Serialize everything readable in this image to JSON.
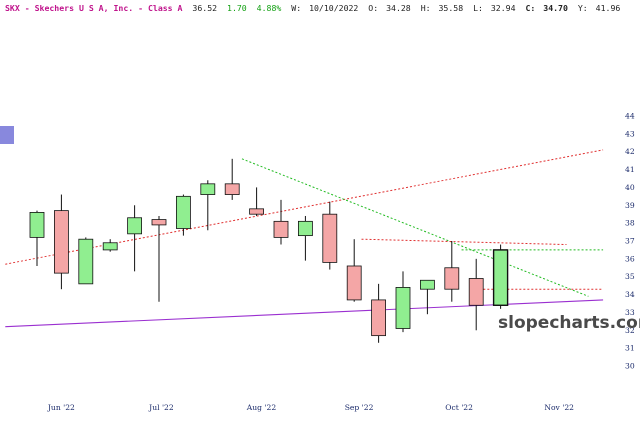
{
  "header": {
    "ticker": "SKX",
    "separator": " - ",
    "name": "Skechers U S A, Inc. - Class A",
    "last": "36.52",
    "change": "1.70",
    "change_pct": "4.88%",
    "week_label": "W:",
    "week_date": "10/10/2022",
    "open_label": "O:",
    "open": "34.28",
    "high_label": "H:",
    "high": "35.58",
    "low_label": "L:",
    "low": "32.94",
    "close_label": "C:",
    "close": "34.70",
    "yearhigh_label": "Y:",
    "yearhigh": "41.96"
  },
  "watermark": "slopecharts.com",
  "colors": {
    "header_name": "#c0148c",
    "header_change": "#12a012",
    "header_text": "#222222",
    "up_fill": "#90ee90",
    "down_fill": "#f4a6a6",
    "candle_stroke": "#111111",
    "trend_green": "#22bb22",
    "trend_red": "#e03030",
    "trend_purple": "#9a2fd0",
    "axis_text": "#1a2a6a",
    "side_marker": "#8888dd"
  },
  "chart_data": {
    "type": "candlestick",
    "title": "SKX - Skechers U S A, Inc. - Class A",
    "y_ticks": [
      30,
      31,
      32,
      33,
      34,
      35,
      36,
      37,
      38,
      39,
      40,
      41,
      42,
      43,
      44
    ],
    "ylim": [
      29.3,
      44.6
    ],
    "x_labels": [
      {
        "label": "Jun '22",
        "x": 1
      },
      {
        "label": "Jul '22",
        "x": 5.1
      },
      {
        "label": "Aug '22",
        "x": 9.2
      },
      {
        "label": "Sep '22",
        "x": 13.2
      },
      {
        "label": "Oct '22",
        "x": 17.3
      },
      {
        "label": "Nov '22",
        "x": 21.4
      }
    ],
    "candles": [
      {
        "x": 0,
        "o": 37.2,
        "h": 38.7,
        "l": 35.6,
        "c": 38.6
      },
      {
        "x": 1,
        "o": 38.7,
        "h": 39.6,
        "l": 34.3,
        "c": 35.2
      },
      {
        "x": 2,
        "o": 34.6,
        "h": 37.2,
        "l": 34.6,
        "c": 37.1
      },
      {
        "x": 3,
        "o": 36.5,
        "h": 37.1,
        "l": 36.4,
        "c": 36.9
      },
      {
        "x": 4,
        "o": 37.4,
        "h": 39.0,
        "l": 35.3,
        "c": 38.3
      },
      {
        "x": 5,
        "o": 38.2,
        "h": 38.4,
        "l": 33.6,
        "c": 37.9
      },
      {
        "x": 6,
        "o": 37.7,
        "h": 39.6,
        "l": 37.3,
        "c": 39.5
      },
      {
        "x": 7,
        "o": 39.6,
        "h": 40.4,
        "l": 37.6,
        "c": 40.2
      },
      {
        "x": 8,
        "o": 40.2,
        "h": 41.6,
        "l": 39.3,
        "c": 39.6
      },
      {
        "x": 9,
        "o": 38.8,
        "h": 40.0,
        "l": 38.4,
        "c": 38.5
      },
      {
        "x": 10,
        "o": 38.1,
        "h": 39.3,
        "l": 36.8,
        "c": 37.2
      },
      {
        "x": 11,
        "o": 37.3,
        "h": 38.4,
        "l": 35.9,
        "c": 38.1
      },
      {
        "x": 12,
        "o": 38.5,
        "h": 39.2,
        "l": 35.4,
        "c": 35.8
      },
      {
        "x": 13,
        "o": 35.6,
        "h": 37.1,
        "l": 33.6,
        "c": 33.7
      },
      {
        "x": 14,
        "o": 33.7,
        "h": 34.6,
        "l": 31.3,
        "c": 31.7
      },
      {
        "x": 15,
        "o": 32.1,
        "h": 35.3,
        "l": 31.9,
        "c": 34.4
      },
      {
        "x": 16,
        "o": 34.3,
        "h": 34.8,
        "l": 32.9,
        "c": 34.8
      },
      {
        "x": 17,
        "o": 35.5,
        "h": 37.0,
        "l": 33.6,
        "c": 34.3
      },
      {
        "x": 18,
        "o": 34.9,
        "h": 36.0,
        "l": 32.0,
        "c": 33.4
      },
      {
        "x": 19,
        "o": 33.4,
        "h": 36.8,
        "l": 33.2,
        "c": 36.5
      }
    ],
    "trendlines": [
      {
        "style": "dotted",
        "color": "red",
        "from": {
          "x": -1.3,
          "y": 35.7
        },
        "to": {
          "x": 23.2,
          "y": 42.1
        }
      },
      {
        "style": "dotted",
        "color": "green",
        "from": {
          "x": 8.4,
          "y": 41.6
        },
        "to": {
          "x": 22.6,
          "y": 33.9
        }
      },
      {
        "style": "solid",
        "color": "purple",
        "from": {
          "x": -1.3,
          "y": 32.2
        },
        "to": {
          "x": 23.2,
          "y": 33.7
        }
      },
      {
        "style": "dotted",
        "color": "red",
        "from": {
          "x": 13.3,
          "y": 37.1
        },
        "to": {
          "x": 21.7,
          "y": 36.8
        }
      },
      {
        "style": "dotted",
        "color": "green",
        "from": {
          "x": 17.4,
          "y": 36.5
        },
        "to": {
          "x": 23.2,
          "y": 36.5
        }
      },
      {
        "style": "dotted",
        "color": "red",
        "from": {
          "x": 17.8,
          "y": 34.3
        },
        "to": {
          "x": 23.2,
          "y": 34.3
        }
      }
    ]
  }
}
